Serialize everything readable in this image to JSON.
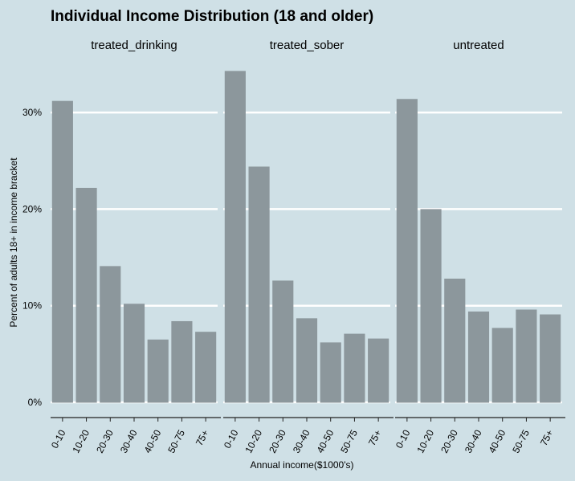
{
  "chart_data": {
    "type": "bar",
    "title": "Individual Income Distribution (18 and older)",
    "xlabel": "Annual income($1000's)",
    "ylabel": "Percent of adults 18+ in income bracket",
    "categories": [
      "0-10",
      "10-20",
      "20-30",
      "30-40",
      "40-50",
      "50-75",
      "75+"
    ],
    "yticks": [
      "0%",
      "10%",
      "20%",
      "30%"
    ],
    "ylim": [
      0,
      0.35
    ],
    "grid": true,
    "bar_color": "#8c979c",
    "gridline_color": "#ffffff",
    "background_color": "#cfe0e6",
    "panels": [
      {
        "label": "treated_drinking",
        "values": [
          0.312,
          0.222,
          0.141,
          0.102,
          0.065,
          0.084,
          0.073
        ]
      },
      {
        "label": "treated_sober",
        "values": [
          0.343,
          0.244,
          0.126,
          0.087,
          0.062,
          0.071,
          0.066
        ]
      },
      {
        "label": "untreated",
        "values": [
          0.314,
          0.2,
          0.128,
          0.094,
          0.077,
          0.096,
          0.091
        ]
      }
    ]
  }
}
